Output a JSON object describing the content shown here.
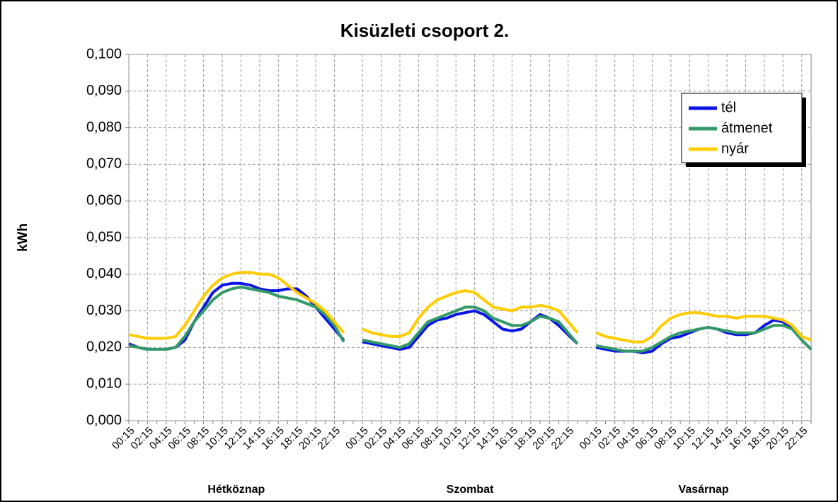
{
  "chart_data": {
    "type": "line",
    "title": "Kisüzleti csoport 2.",
    "y_label": "kWh",
    "groups": [
      "Hétköznap",
      "Szombat",
      "Vasárnap"
    ],
    "categories": [
      "00:15",
      null,
      "02:15",
      null,
      "04:15",
      null,
      "06:15",
      null,
      "08:15",
      null,
      "10:15",
      null,
      "12:15",
      null,
      "14:15",
      null,
      "16:15",
      null,
      "18:15",
      null,
      "20:15",
      null,
      "22:15",
      null,
      null,
      "00:15",
      null,
      "02:15",
      null,
      "04:15",
      null,
      "06:15",
      null,
      "08:15",
      null,
      "10:15",
      null,
      "12:15",
      null,
      "14:15",
      null,
      "16:15",
      null,
      "18:15",
      null,
      "20:15",
      null,
      "22:15",
      null,
      null,
      "00:15",
      null,
      "02:15",
      null,
      "04:15",
      null,
      "06:15",
      null,
      "08:15",
      null,
      "10:15",
      null,
      "12:15",
      null,
      "14:15",
      null,
      "16:15",
      null,
      "18:15",
      null,
      "20:15",
      null,
      "22:15",
      null
    ],
    "series": [
      {
        "name": "tél",
        "color": "#0a14e6",
        "values": [
          0.021,
          0.02,
          0.0195,
          0.0195,
          0.0195,
          0.02,
          0.022,
          0.027,
          0.031,
          0.035,
          0.037,
          0.0375,
          0.0375,
          0.037,
          0.036,
          0.0355,
          0.0355,
          0.036,
          0.036,
          0.034,
          0.031,
          0.028,
          0.025,
          0.022,
          null,
          0.0215,
          0.021,
          0.0205,
          0.02,
          0.0195,
          0.02,
          0.023,
          0.026,
          0.0275,
          0.028,
          0.029,
          0.0295,
          0.03,
          0.029,
          0.027,
          0.025,
          0.0245,
          0.025,
          0.027,
          0.029,
          0.028,
          0.026,
          0.0235,
          0.021,
          null,
          0.02,
          0.0195,
          0.019,
          0.019,
          0.019,
          0.0185,
          0.019,
          0.021,
          0.0225,
          0.023,
          0.024,
          0.025,
          0.0255,
          0.025,
          0.024,
          0.0235,
          0.0235,
          0.024,
          0.026,
          0.0275,
          0.027,
          0.025,
          0.022,
          0.0195
        ]
      },
      {
        "name": "átmenet",
        "color": "#339966",
        "values": [
          0.0205,
          0.02,
          0.0195,
          0.0195,
          0.0195,
          0.02,
          0.023,
          0.027,
          0.03,
          0.033,
          0.035,
          0.036,
          0.0365,
          0.036,
          0.0355,
          0.035,
          0.034,
          0.0335,
          0.033,
          0.032,
          0.031,
          0.029,
          0.026,
          0.0215,
          null,
          0.022,
          0.0215,
          0.021,
          0.0205,
          0.02,
          0.021,
          0.024,
          0.027,
          0.028,
          0.029,
          0.03,
          0.031,
          0.031,
          0.03,
          0.028,
          0.027,
          0.026,
          0.026,
          0.027,
          0.0285,
          0.028,
          0.027,
          0.024,
          0.021,
          null,
          0.0205,
          0.02,
          0.0195,
          0.019,
          0.019,
          0.019,
          0.02,
          0.0215,
          0.023,
          0.024,
          0.0245,
          0.025,
          0.0255,
          0.025,
          0.0245,
          0.024,
          0.024,
          0.024,
          0.025,
          0.026,
          0.026,
          0.025,
          0.022,
          0.0195
        ]
      },
      {
        "name": "nyár",
        "color": "#ffcc00",
        "values": [
          0.0235,
          0.023,
          0.0225,
          0.0225,
          0.0225,
          0.023,
          0.026,
          0.03,
          0.034,
          0.037,
          0.039,
          0.04,
          0.0405,
          0.0405,
          0.04,
          0.04,
          0.039,
          0.037,
          0.035,
          0.0335,
          0.032,
          0.03,
          0.027,
          0.024,
          null,
          0.025,
          0.024,
          0.0235,
          0.023,
          0.023,
          0.024,
          0.028,
          0.031,
          0.033,
          0.034,
          0.035,
          0.0355,
          0.035,
          0.033,
          0.031,
          0.0305,
          0.03,
          0.031,
          0.031,
          0.0315,
          0.031,
          0.03,
          0.027,
          0.024,
          null,
          0.024,
          0.023,
          0.0225,
          0.022,
          0.0215,
          0.0215,
          0.023,
          0.026,
          0.028,
          0.029,
          0.0295,
          0.0295,
          0.029,
          0.0285,
          0.0285,
          0.028,
          0.0285,
          0.0285,
          0.0285,
          0.028,
          0.0275,
          0.026,
          0.023,
          0.022
        ]
      }
    ],
    "ylim": [
      0,
      0.1
    ],
    "yticks": [
      {
        "value": 0,
        "label": "0,000"
      },
      {
        "value": 0.01,
        "label": "0,010"
      },
      {
        "value": 0.02,
        "label": "0,020"
      },
      {
        "value": 0.03,
        "label": "0,030"
      },
      {
        "value": 0.04,
        "label": "0,040"
      },
      {
        "value": 0.05,
        "label": "0,050"
      },
      {
        "value": 0.06,
        "label": "0,060"
      },
      {
        "value": 0.07,
        "label": "0,070"
      },
      {
        "value": 0.08,
        "label": "0,080"
      },
      {
        "value": 0.09,
        "label": "0,090"
      },
      {
        "value": 0.1,
        "label": "0,100"
      }
    ],
    "grid": true,
    "legend": "top-right"
  }
}
